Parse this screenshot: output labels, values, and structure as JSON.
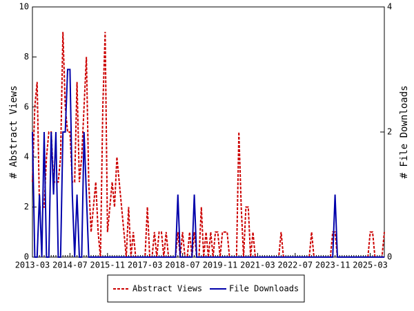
{
  "chart_data": {
    "type": "line",
    "y_label": "# Abstract Views",
    "y2_label": "# File Downloads",
    "x": [
      "2013-03",
      "2013-04",
      "2013-05",
      "2013-06",
      "2013-07",
      "2013-08",
      "2013-09",
      "2013-10",
      "2013-11",
      "2013-12",
      "2014-01",
      "2014-02",
      "2014-03",
      "2014-04",
      "2014-05",
      "2014-06",
      "2014-07",
      "2014-08",
      "2014-09",
      "2014-10",
      "2014-11",
      "2014-12",
      "2015-01",
      "2015-02",
      "2015-03",
      "2015-04",
      "2015-05",
      "2015-06",
      "2015-07",
      "2015-08",
      "2015-09",
      "2015-10",
      "2015-11",
      "2015-12",
      "2016-01",
      "2016-02",
      "2016-03",
      "2016-04",
      "2016-05",
      "2016-06",
      "2016-07",
      "2016-08",
      "2016-09",
      "2016-10",
      "2016-11",
      "2016-12",
      "2017-01",
      "2017-02",
      "2017-03",
      "2017-04",
      "2017-05",
      "2017-06",
      "2017-07",
      "2017-08",
      "2017-09",
      "2017-10",
      "2017-11",
      "2017-12",
      "2018-01",
      "2018-02",
      "2018-03",
      "2018-04",
      "2018-05",
      "2018-06",
      "2018-07",
      "2018-08",
      "2018-09",
      "2018-10",
      "2018-11",
      "2018-12",
      "2019-01",
      "2019-02",
      "2019-03",
      "2019-04",
      "2019-05",
      "2019-06",
      "2019-07",
      "2019-08",
      "2019-09",
      "2019-10",
      "2019-11",
      "2019-12",
      "2020-01",
      "2020-02",
      "2020-03",
      "2020-04",
      "2020-05",
      "2020-06",
      "2020-07",
      "2020-08",
      "2020-09",
      "2020-10",
      "2020-11",
      "2020-12",
      "2021-01",
      "2021-02",
      "2021-03",
      "2021-04",
      "2021-05",
      "2021-06",
      "2021-07",
      "2021-08",
      "2021-09",
      "2021-10",
      "2021-11",
      "2021-12",
      "2022-01",
      "2022-02",
      "2022-03",
      "2022-04",
      "2022-05",
      "2022-06",
      "2022-07",
      "2022-08",
      "2022-09",
      "2022-10",
      "2022-11",
      "2022-12",
      "2023-01",
      "2023-02",
      "2023-03",
      "2023-04",
      "2023-05",
      "2023-06",
      "2023-07",
      "2023-08",
      "2023-09",
      "2023-10",
      "2023-11",
      "2023-12",
      "2024-01",
      "2024-02",
      "2024-03",
      "2024-04",
      "2024-05",
      "2024-06",
      "2024-07",
      "2024-08",
      "2024-09",
      "2024-10",
      "2024-11",
      "2024-12",
      "2025-01",
      "2025-02",
      "2025-03",
      "2025-04",
      "2025-05",
      "2025-06",
      "2025-07",
      "2025-08",
      "2025-09"
    ],
    "xticks": [
      "2013-03",
      "2014-07",
      "2015-11",
      "2017-03",
      "2018-07",
      "2019-11",
      "2021-03",
      "2022-07",
      "2023-11",
      "2025-03"
    ],
    "ylim": [
      0,
      10
    ],
    "yticks": [
      0,
      2,
      4,
      6,
      8,
      10
    ],
    "y2lim": [
      0,
      4
    ],
    "y2ticks": [
      0,
      2,
      4
    ],
    "series": [
      {
        "name": "Abstract Views",
        "color": "#cc0000",
        "dashed": true,
        "values": [
          3,
          6,
          7,
          2,
          2,
          2,
          4,
          5,
          5,
          3,
          3,
          3,
          4,
          9,
          6,
          5,
          5,
          3,
          3,
          7,
          3,
          4,
          6,
          8,
          3,
          1,
          2,
          3,
          1,
          0,
          6,
          9,
          1,
          2,
          3,
          2,
          4,
          3,
          2,
          1,
          0,
          2,
          0,
          1,
          0,
          0,
          0,
          0,
          0,
          2,
          0,
          0,
          1,
          0,
          1,
          1,
          0,
          1,
          0,
          0,
          0,
          0,
          1,
          0,
          1,
          0,
          0,
          1,
          0,
          1,
          0,
          0,
          2,
          0,
          1,
          0,
          1,
          0,
          1,
          1,
          0,
          1,
          1,
          1,
          0,
          0,
          0,
          0,
          5,
          2,
          0,
          2,
          2,
          0,
          1,
          0,
          0,
          0,
          0,
          0,
          0,
          0,
          0,
          0,
          0,
          0,
          1,
          0,
          0,
          0,
          0,
          0,
          0,
          0,
          0,
          0,
          0,
          0,
          0,
          1,
          0,
          0,
          0,
          0,
          0,
          0,
          0,
          0,
          1,
          1,
          0,
          0,
          0,
          0,
          0,
          0,
          0,
          0,
          0,
          0,
          0,
          0,
          0,
          0,
          1,
          1,
          0,
          0,
          0,
          0,
          1
        ]
      },
      {
        "name": "File Downloads",
        "color": "#0000aa",
        "dashed": false,
        "axis": "y2",
        "values": [
          2,
          0,
          0,
          1,
          0,
          2,
          0,
          0,
          2,
          1,
          2,
          0,
          0,
          2,
          2,
          3,
          3,
          1,
          0,
          1,
          0,
          0,
          2,
          1,
          0,
          0,
          0,
          0,
          0,
          0,
          0,
          0,
          0,
          0,
          0,
          0,
          0,
          0,
          0,
          0,
          0,
          0,
          0,
          0,
          0,
          0,
          0,
          0,
          0,
          0,
          0,
          0,
          0,
          0,
          0,
          0,
          0,
          0,
          0,
          0,
          0,
          0,
          1,
          0,
          0,
          0,
          0,
          0,
          0,
          1,
          0,
          0,
          0,
          0,
          0,
          0,
          0,
          0,
          0,
          0,
          0,
          0,
          0,
          0,
          0,
          0,
          0,
          0,
          0,
          0,
          0,
          0,
          0,
          0,
          0,
          0,
          0,
          0,
          0,
          0,
          0,
          0,
          0,
          0,
          0,
          0,
          0,
          0,
          0,
          0,
          0,
          0,
          0,
          0,
          0,
          0,
          0,
          0,
          0,
          0,
          0,
          0,
          0,
          0,
          0,
          0,
          0,
          0,
          0,
          1,
          0,
          0,
          0,
          0,
          0,
          0,
          0,
          0,
          0,
          0,
          0,
          0,
          0,
          0,
          0,
          0,
          0,
          0,
          0,
          0,
          0
        ]
      }
    ]
  }
}
